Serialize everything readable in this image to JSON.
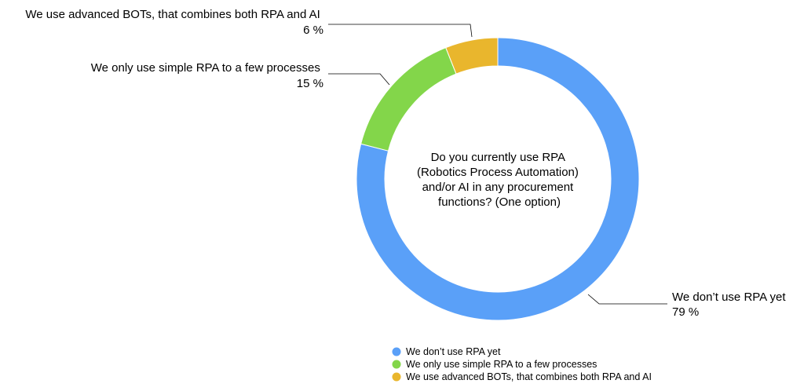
{
  "chart_data": {
    "type": "pie",
    "donut": true,
    "center_text": [
      "Do you currently use RPA",
      "(Robotics Process Automation)",
      "and/or AI in any procurement",
      "functions? (One option)"
    ],
    "slices": [
      {
        "label": "We don’t use RPA yet",
        "value": 79,
        "value_label": "79 %",
        "color": "#5aa0f8"
      },
      {
        "label": "We only use simple RPA to a few processes",
        "value": 15,
        "value_label": "15 %",
        "color": "#83d64a"
      },
      {
        "label": "We use advanced BOTs, that combines both RPA and AI",
        "value": 6,
        "value_label": "6 %",
        "color": "#e9b62d"
      }
    ],
    "legend_position": "bottom-center"
  }
}
